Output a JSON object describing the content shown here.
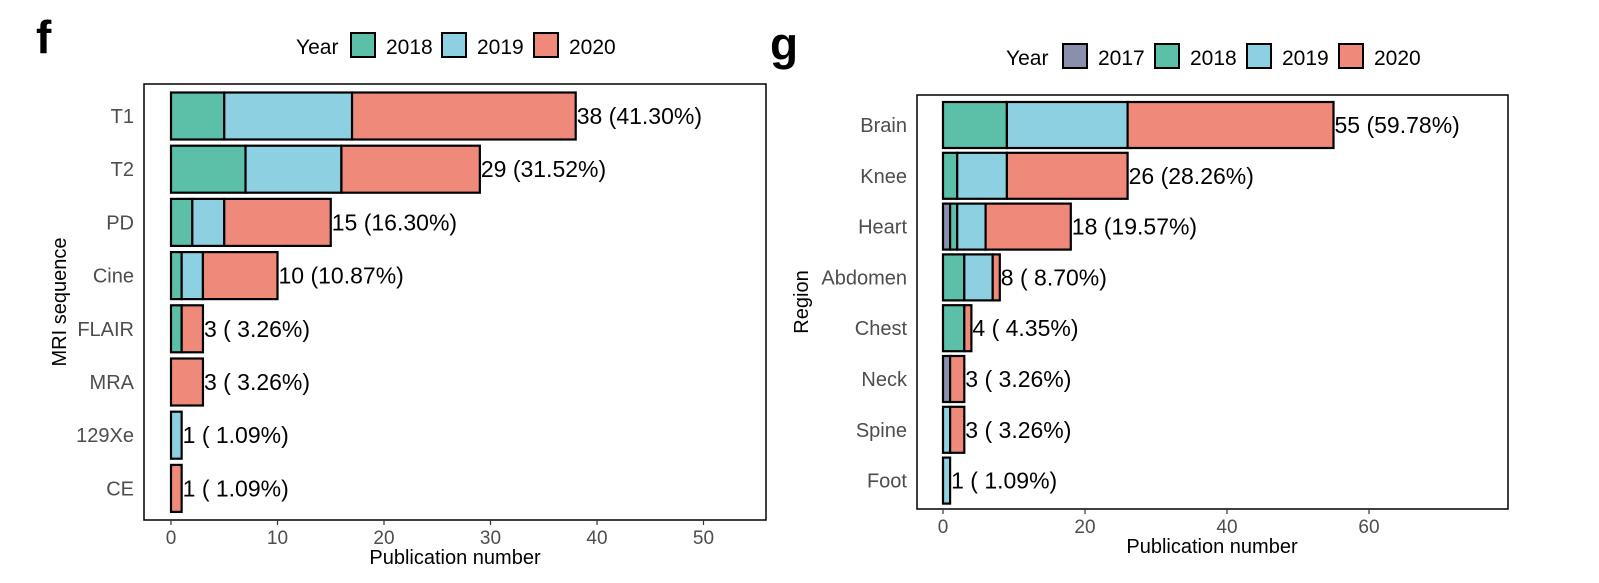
{
  "colors": {
    "2017": "#8a8fad",
    "2018": "#5cc0a8",
    "2019": "#8dd0e1",
    "2020": "#ef8a7b"
  },
  "chart_data": [
    {
      "panel": "f",
      "type": "bar",
      "orientation": "horizontal",
      "stacked": true,
      "legend_title": "Year",
      "legend_position": "top",
      "xlabel": "Publication number",
      "ylabel": "MRI sequence",
      "xlim": [
        0,
        55
      ],
      "xticks": [
        0,
        10,
        20,
        30,
        40,
        50
      ],
      "categories": [
        "T1",
        "T2",
        "PD",
        "Cine",
        "FLAIR",
        "MRA",
        "129Xe",
        "CE"
      ],
      "series": [
        {
          "name": "2018",
          "values": [
            5,
            7,
            2,
            1,
            1,
            0,
            0,
            0
          ]
        },
        {
          "name": "2019",
          "values": [
            12,
            9,
            3,
            2,
            0,
            0,
            1,
            0
          ]
        },
        {
          "name": "2020",
          "values": [
            21,
            13,
            10,
            7,
            2,
            3,
            0,
            1
          ]
        }
      ],
      "labels": [
        "38 (41.30%)",
        "29 (31.52%)",
        "15 (16.30%)",
        "10 (10.87%)",
        "3 ( 3.26%)",
        "3 ( 3.26%)",
        "1 ( 1.09%)",
        "1 ( 1.09%)"
      ]
    },
    {
      "panel": "g",
      "type": "bar",
      "orientation": "horizontal",
      "stacked": true,
      "legend_title": "Year",
      "legend_position": "top",
      "xlabel": "Publication number",
      "ylabel": "Region",
      "xlim": [
        0,
        82
      ],
      "xticks": [
        0,
        20,
        40,
        60
      ],
      "categories": [
        "Brain",
        "Knee",
        "Heart",
        "Abdomen",
        "Chest",
        "Neck",
        "Spine",
        "Foot"
      ],
      "series": [
        {
          "name": "2017",
          "values": [
            0,
            0,
            1,
            0,
            0,
            1,
            0,
            0
          ]
        },
        {
          "name": "2018",
          "values": [
            9,
            2,
            1,
            3,
            3,
            0,
            0,
            0
          ]
        },
        {
          "name": "2019",
          "values": [
            17,
            7,
            4,
            4,
            0,
            0,
            1,
            1
          ]
        },
        {
          "name": "2020",
          "values": [
            29,
            17,
            12,
            1,
            1,
            2,
            2,
            0
          ]
        }
      ],
      "labels": [
        "55 (59.78%)",
        "26 (28.26%)",
        "18 (19.57%)",
        "8 ( 8.70%)",
        "4 ( 4.35%)",
        "3 ( 3.26%)",
        "3 ( 3.26%)",
        "1 ( 1.09%)"
      ]
    }
  ]
}
